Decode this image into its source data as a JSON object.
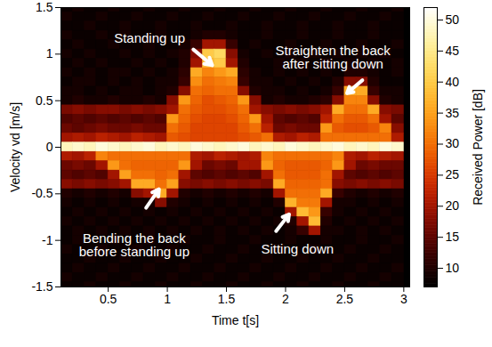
{
  "chart_data": {
    "type": "heatmap",
    "x_label": "Time t[s]",
    "y_label": "Velocity vd [m/s]",
    "xlim": [
      0.1,
      3.05
    ],
    "ylim": [
      -1.5,
      1.5
    ],
    "xticks": [
      0.5,
      1,
      1.5,
      2,
      2.5,
      3
    ],
    "yticks": [
      -1.5,
      -1,
      -0.5,
      0,
      0.5,
      1,
      1.5
    ],
    "cells": {
      "t": [
        0.15,
        0.25,
        0.35,
        0.45,
        0.55,
        0.65,
        0.75,
        0.85,
        0.95,
        1.05,
        1.15,
        1.25,
        1.35,
        1.45,
        1.55,
        1.65,
        1.75,
        1.85,
        1.95,
        2.05,
        2.15,
        2.25,
        2.35,
        2.45,
        2.55,
        2.65,
        2.75,
        2.85,
        2.95
      ],
      "v": [
        1.5,
        1.4,
        1.3,
        1.2,
        1.1,
        1.0,
        0.9,
        0.8,
        0.7,
        0.6,
        0.5,
        0.4,
        0.3,
        0.2,
        0.1,
        0,
        -0.1,
        -0.2,
        -0.3,
        -0.4,
        -0.5,
        -0.6,
        -0.7,
        -0.8,
        -0.9,
        -1.0,
        -1.1,
        -1.2,
        -1.3,
        -1.4,
        -1.5
      ],
      "power": [
        [
          8,
          9,
          8,
          8,
          9,
          8,
          8,
          9,
          8,
          8,
          9,
          8,
          8,
          9,
          8,
          8,
          9,
          8,
          8,
          9,
          8,
          8,
          9,
          8,
          8,
          9,
          8,
          8,
          9
        ],
        [
          9,
          8,
          8,
          9,
          8,
          8,
          9,
          8,
          8,
          9,
          8,
          8,
          9,
          8,
          8,
          9,
          8,
          8,
          9,
          8,
          8,
          9,
          8,
          8,
          9,
          8,
          8,
          9,
          8
        ],
        [
          8,
          8,
          9,
          8,
          8,
          9,
          8,
          8,
          9,
          8,
          8,
          9,
          8,
          8,
          9,
          8,
          8,
          9,
          8,
          8,
          9,
          8,
          8,
          9,
          8,
          8,
          9,
          8,
          8
        ],
        [
          9,
          8,
          8,
          9,
          8,
          9,
          8,
          8,
          9,
          8,
          8,
          9,
          10,
          10,
          9,
          8,
          8,
          9,
          8,
          8,
          9,
          8,
          8,
          9,
          8,
          8,
          9,
          8,
          8
        ],
        [
          8,
          9,
          8,
          8,
          9,
          8,
          8,
          9,
          8,
          8,
          9,
          12,
          20,
          20,
          12,
          8,
          9,
          8,
          8,
          9,
          8,
          8,
          9,
          8,
          8,
          9,
          8,
          8,
          9
        ],
        [
          9,
          8,
          9,
          8,
          8,
          9,
          8,
          9,
          8,
          9,
          10,
          18,
          40,
          42,
          18,
          9,
          8,
          9,
          8,
          9,
          8,
          9,
          8,
          9,
          8,
          9,
          8,
          9,
          8
        ],
        [
          8,
          9,
          8,
          9,
          8,
          8,
          9,
          8,
          9,
          8,
          10,
          20,
          38,
          40,
          20,
          10,
          8,
          8,
          9,
          8,
          9,
          8,
          9,
          8,
          9,
          8,
          9,
          8,
          9
        ],
        [
          9,
          8,
          9,
          8,
          9,
          9,
          8,
          9,
          8,
          9,
          11,
          36,
          32,
          34,
          36,
          11,
          9,
          8,
          9,
          8,
          9,
          8,
          9,
          8,
          10,
          10,
          9,
          8,
          9
        ],
        [
          8,
          9,
          9,
          8,
          9,
          8,
          9,
          8,
          9,
          9,
          12,
          33,
          30,
          31,
          32,
          12,
          9,
          9,
          8,
          9,
          8,
          9,
          8,
          10,
          18,
          18,
          10,
          8,
          8
        ],
        [
          9,
          9,
          8,
          9,
          8,
          9,
          9,
          8,
          9,
          10,
          18,
          30,
          29,
          30,
          30,
          18,
          10,
          9,
          9,
          8,
          9,
          8,
          9,
          12,
          36,
          36,
          12,
          9,
          9
        ],
        [
          9,
          10,
          9,
          9,
          10,
          9,
          9,
          10,
          9,
          18,
          34,
          29,
          27,
          28,
          29,
          34,
          18,
          9,
          10,
          9,
          9,
          10,
          11,
          18,
          32,
          32,
          18,
          10,
          9
        ],
        [
          17,
          18,
          17,
          18,
          18,
          17,
          18,
          17,
          18,
          20,
          30,
          28,
          27,
          27,
          28,
          30,
          20,
          18,
          17,
          18,
          17,
          18,
          20,
          36,
          30,
          30,
          36,
          18,
          17
        ],
        [
          14,
          15,
          14,
          15,
          14,
          15,
          14,
          15,
          14,
          34,
          29,
          27,
          26,
          26,
          27,
          29,
          34,
          20,
          15,
          14,
          15,
          14,
          22,
          30,
          28,
          28,
          30,
          20,
          15
        ],
        [
          16,
          15,
          16,
          17,
          16,
          16,
          17,
          16,
          16,
          30,
          28,
          26,
          26,
          26,
          26,
          28,
          30,
          22,
          16,
          17,
          16,
          16,
          34,
          28,
          27,
          27,
          28,
          32,
          18
        ],
        [
          20,
          21,
          20,
          22,
          21,
          20,
          22,
          21,
          20,
          28,
          27,
          26,
          26,
          26,
          26,
          27,
          28,
          30,
          21,
          20,
          22,
          21,
          30,
          30,
          30,
          30,
          30,
          30,
          21
        ],
        [
          48,
          49,
          48,
          50,
          49,
          48,
          49,
          50,
          48,
          49,
          48,
          50,
          49,
          48,
          49,
          50,
          48,
          49,
          48,
          50,
          49,
          48,
          49,
          50,
          48,
          49,
          48,
          50,
          49
        ],
        [
          21,
          20,
          22,
          32,
          30,
          30,
          30,
          30,
          30,
          30,
          30,
          21,
          20,
          22,
          21,
          20,
          21,
          32,
          30,
          30,
          30,
          30,
          30,
          32,
          21,
          20,
          22,
          21,
          20
        ],
        [
          16,
          17,
          16,
          20,
          34,
          30,
          29,
          29,
          29,
          29,
          34,
          20,
          16,
          17,
          16,
          20,
          20,
          34,
          29,
          28,
          28,
          28,
          29,
          34,
          20,
          16,
          17,
          16,
          16
        ],
        [
          15,
          14,
          15,
          14,
          20,
          35,
          30,
          30,
          29,
          30,
          20,
          15,
          14,
          15,
          14,
          15,
          14,
          20,
          30,
          28,
          28,
          28,
          30,
          20,
          15,
          14,
          15,
          14,
          15
        ],
        [
          18,
          17,
          18,
          17,
          18,
          20,
          36,
          36,
          30,
          35,
          18,
          17,
          18,
          17,
          18,
          17,
          18,
          17,
          36,
          29,
          29,
          29,
          30,
          18,
          17,
          18,
          17,
          18,
          17
        ],
        [
          10,
          9,
          10,
          9,
          10,
          9,
          18,
          20,
          36,
          20,
          10,
          9,
          10,
          9,
          10,
          9,
          10,
          9,
          20,
          30,
          30,
          30,
          36,
          12,
          10,
          9,
          10,
          9,
          10
        ],
        [
          9,
          8,
          9,
          8,
          9,
          8,
          9,
          9,
          18,
          10,
          9,
          8,
          9,
          8,
          9,
          8,
          9,
          8,
          10,
          37,
          31,
          31,
          20,
          9,
          9,
          8,
          9,
          8,
          9
        ],
        [
          8,
          9,
          8,
          9,
          8,
          9,
          8,
          9,
          8,
          9,
          8,
          9,
          8,
          9,
          8,
          9,
          8,
          9,
          8,
          20,
          38,
          34,
          12,
          9,
          8,
          9,
          8,
          9,
          8
        ],
        [
          9,
          8,
          9,
          8,
          9,
          8,
          9,
          8,
          9,
          8,
          9,
          8,
          9,
          8,
          9,
          8,
          9,
          8,
          9,
          10,
          20,
          38,
          10,
          8,
          9,
          8,
          9,
          8,
          9
        ],
        [
          8,
          9,
          8,
          9,
          8,
          9,
          8,
          9,
          8,
          9,
          8,
          9,
          8,
          9,
          8,
          9,
          8,
          9,
          8,
          9,
          12,
          20,
          9,
          9,
          8,
          9,
          8,
          9,
          8
        ],
        [
          8,
          9,
          8,
          8,
          9,
          8,
          8,
          9,
          8,
          8,
          9,
          8,
          8,
          9,
          8,
          8,
          9,
          8,
          8,
          9,
          8,
          8,
          9,
          8,
          8,
          9,
          8,
          8,
          9
        ],
        [
          9,
          8,
          8,
          9,
          8,
          8,
          9,
          8,
          8,
          9,
          8,
          8,
          9,
          8,
          8,
          9,
          8,
          8,
          9,
          8,
          8,
          9,
          8,
          8,
          9,
          8,
          8,
          9,
          8
        ],
        [
          8,
          8,
          9,
          8,
          8,
          9,
          8,
          8,
          9,
          8,
          8,
          9,
          8,
          8,
          9,
          8,
          8,
          9,
          8,
          8,
          9,
          8,
          8,
          9,
          8,
          8,
          9,
          8,
          8
        ],
        [
          8,
          9,
          8,
          8,
          9,
          8,
          8,
          9,
          8,
          8,
          9,
          8,
          8,
          9,
          8,
          8,
          9,
          8,
          8,
          9,
          8,
          8,
          9,
          8,
          8,
          9,
          8,
          8,
          9
        ],
        [
          9,
          8,
          8,
          9,
          8,
          8,
          9,
          8,
          8,
          9,
          8,
          8,
          9,
          8,
          8,
          9,
          8,
          8,
          9,
          8,
          8,
          9,
          8,
          8,
          9,
          8,
          8,
          9,
          8
        ],
        [
          8,
          8,
          9,
          8,
          8,
          9,
          8,
          8,
          9,
          8,
          8,
          9,
          8,
          8,
          9,
          8,
          8,
          9,
          8,
          8,
          9,
          8,
          8,
          9,
          8,
          8,
          9,
          8,
          8
        ]
      ]
    },
    "colorbar": {
      "label": "Received Power [dB]",
      "range": [
        7,
        52
      ],
      "ticks": [
        10,
        15,
        20,
        25,
        30,
        35,
        40,
        45,
        50
      ]
    },
    "annotations": [
      {
        "text": "Standing up",
        "x": 1.38,
        "y": 0.88
      },
      {
        "text": "Straighten the back after sitting down",
        "x": 2.52,
        "y": 0.58
      },
      {
        "text": "Bending the back before standing up",
        "x": 0.93,
        "y": -0.45
      },
      {
        "text": "Sitting down",
        "x": 2.03,
        "y": -0.72
      }
    ]
  }
}
